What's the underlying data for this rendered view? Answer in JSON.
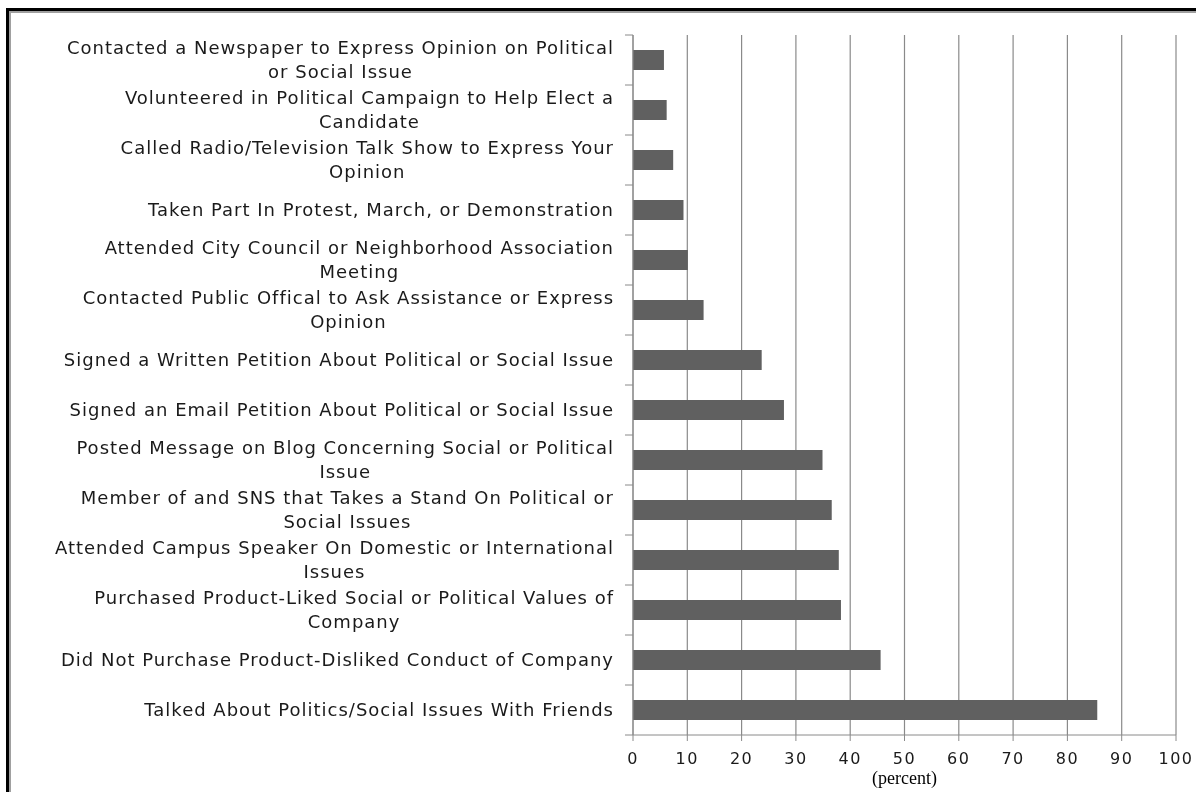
{
  "chart_data": {
    "type": "bar",
    "orientation": "horizontal",
    "categories": [
      "Contacted a Newspaper to Express Opinion on Political or Social Issue",
      "Volunteered in Political Campaign to Help Elect a Candidate",
      "Called Radio/Television Talk Show to Express Your Opinion",
      "Taken Part In Protest, March, or Demonstration",
      "Attended City Council or Neighborhood Association Meeting",
      "Contacted Public Offical to Ask Assistance or Express Opinion",
      "Signed a Written Petition About Political or Social Issue",
      "Signed an Email Petition About Political or Social Issue",
      "Posted Message on Blog Concerning Social or Political Issue",
      "Member of and SNS that Takes a Stand On Political or Social Issues",
      "Attended Campus Speaker On Domestic or International Issues",
      "Purchased Product-Liked Social or Political Values of Company",
      "Did Not Purchase Product-Disliked Conduct of Company",
      "Talked About Politics/Social Issues With Friends"
    ],
    "values": [
      5.7,
      6.2,
      7.4,
      9.3,
      10.1,
      13.0,
      23.7,
      27.8,
      34.9,
      36.6,
      37.9,
      38.3,
      45.6,
      85.5
    ],
    "color": "#606060",
    "xlabel": "(percent)",
    "xlim": [
      0,
      100
    ],
    "xticks": [
      0,
      10,
      20,
      30,
      40,
      50,
      60,
      70,
      80,
      90,
      100
    ],
    "grid": "x"
  }
}
